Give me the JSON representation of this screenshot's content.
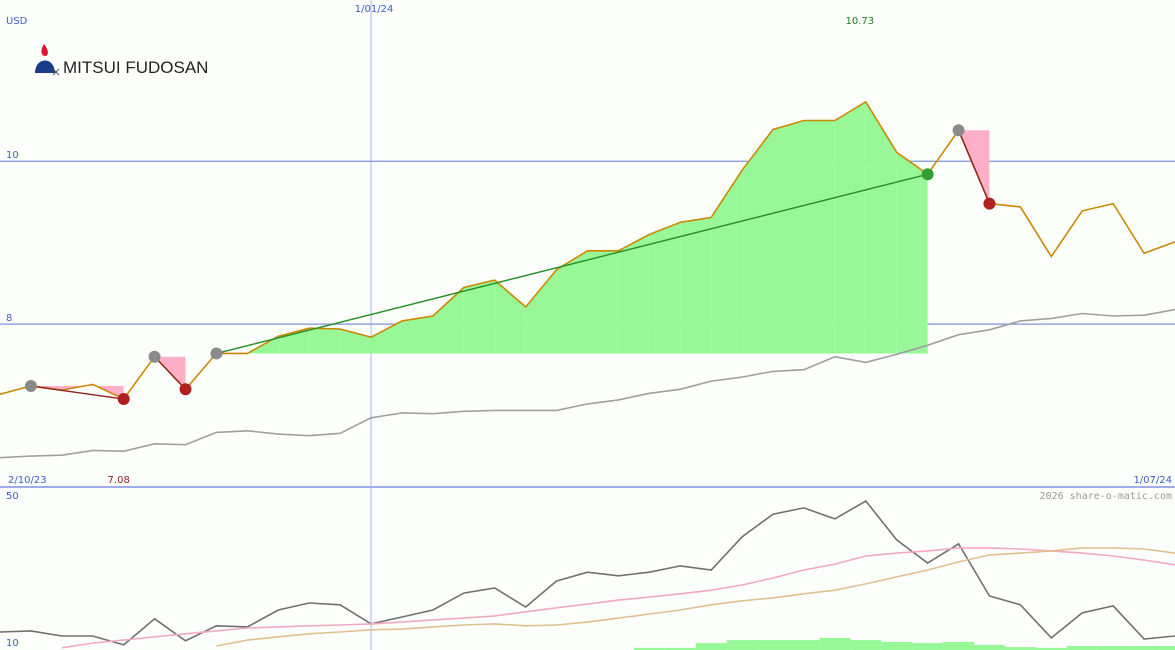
{
  "chart_data": [
    {
      "type": "line",
      "unit": "USD",
      "logo_text": "MITSUI FUDOSAN",
      "start_date": "2/10/23",
      "end_date": "1/07/24",
      "categories": [
        null,
        null,
        null,
        null,
        null,
        null,
        null,
        null,
        null,
        null,
        null,
        null,
        "1/01/24",
        null,
        null,
        null,
        null,
        null,
        null,
        null,
        null,
        null,
        null,
        null,
        null,
        null,
        null,
        null,
        null,
        null,
        null,
        null,
        null,
        null,
        null,
        null,
        null,
        null,
        null
      ],
      "ylim": [
        6,
        11.98
      ],
      "yticks": [
        8,
        10
      ],
      "grid": true,
      "series": [
        {
          "color": "#cc8800",
          "values": [
            7.14,
            7.24,
            7.19,
            7.26,
            7.08,
            7.6,
            7.2,
            7.64,
            7.64,
            7.85,
            7.95,
            7.94,
            7.84,
            8.04,
            8.1,
            8.45,
            8.54,
            8.21,
            8.67,
            8.9,
            8.9,
            9.1,
            9.25,
            9.31,
            9.89,
            10.39,
            10.5,
            10.5,
            10.73,
            10.11,
            9.84,
            10.38,
            9.48,
            9.44,
            8.83,
            9.39,
            9.48,
            8.87,
            9.01
          ]
        },
        {
          "color": "#a0a0a0",
          "values": [
            6.36,
            6.38,
            6.39,
            6.45,
            6.44,
            6.53,
            6.52,
            6.67,
            6.69,
            6.65,
            6.63,
            6.66,
            6.85,
            6.91,
            6.9,
            6.93,
            6.94,
            6.94,
            6.94,
            7.02,
            7.07,
            7.15,
            7.2,
            7.3,
            7.35,
            7.42,
            7.44,
            7.6,
            7.53,
            7.63,
            7.74,
            7.87,
            7.93,
            8.04,
            8.07,
            8.13,
            8.1,
            8.11,
            8.18
          ]
        }
      ],
      "trades": [
        {
          "entry": 1,
          "exit": 4
        },
        {
          "entry": 5,
          "exit": 6
        },
        {
          "entry": 7,
          "exit": 30
        },
        {
          "entry": 31,
          "exit": 32
        }
      ],
      "gain_color": "#98f898",
      "loss_color": "#ffb0c8"
    },
    {
      "type": "line",
      "credit": "2026 share-o-matic.com",
      "ylim": [
        7.8,
        52.2
      ],
      "yticks": [
        10,
        50
      ],
      "grid": false,
      "series": [
        {
          "color": "#707070",
          "values": [
            12.7,
            13.0,
            11.6,
            11.6,
            9.2,
            16.3,
            10.3,
            14.4,
            14.1,
            18.7,
            20.6,
            20.1,
            14.9,
            16.8,
            18.7,
            23.3,
            24.7,
            19.5,
            26.6,
            29.0,
            28.0,
            29.0,
            30.7,
            29.6,
            38.6,
            44.8,
            46.5,
            43.5,
            48.4,
            37.8,
            31.5,
            36.7,
            22.5,
            20.1,
            11.1,
            17.9,
            19.8,
            10.8,
            11.6
          ]
        },
        {
          "color": "#f4a8c0",
          "values": [
            null,
            null,
            8.4,
            9.7,
            10.5,
            11.4,
            12.2,
            13.0,
            13.8,
            14.1,
            14.4,
            14.6,
            14.9,
            15.4,
            16.0,
            16.5,
            17.1,
            18.2,
            19.3,
            20.3,
            21.4,
            22.2,
            23.1,
            24.1,
            25.5,
            27.4,
            29.6,
            31.2,
            33.4,
            34.2,
            34.8,
            35.6,
            35.6,
            35.3,
            34.8,
            34.2,
            33.4,
            32.3,
            31.0
          ]
        },
        {
          "color": "#e0c090",
          "values": [
            null,
            null,
            null,
            null,
            null,
            null,
            null,
            8.9,
            10.5,
            11.4,
            12.2,
            12.7,
            13.3,
            13.5,
            14.1,
            14.6,
            14.9,
            14.4,
            14.6,
            15.4,
            16.5,
            17.6,
            18.7,
            20.1,
            21.2,
            22.0,
            23.1,
            24.1,
            25.8,
            27.7,
            29.6,
            31.8,
            33.7,
            34.2,
            34.8,
            35.6,
            35.6,
            35.3,
            34.2
          ]
        },
        {
          "type": "bar",
          "color": "#98f898",
          "values": [
            null,
            null,
            null,
            null,
            null,
            null,
            null,
            null,
            null,
            null,
            null,
            null,
            null,
            null,
            null,
            null,
            null,
            null,
            null,
            null,
            null,
            8.4,
            8.4,
            9.7,
            10.5,
            10.5,
            10.5,
            11.1,
            10.5,
            10.0,
            9.7,
            10.0,
            9.2,
            8.6,
            8.4,
            8.9,
            8.9,
            8.9,
            8.9
          ]
        }
      ]
    }
  ]
}
